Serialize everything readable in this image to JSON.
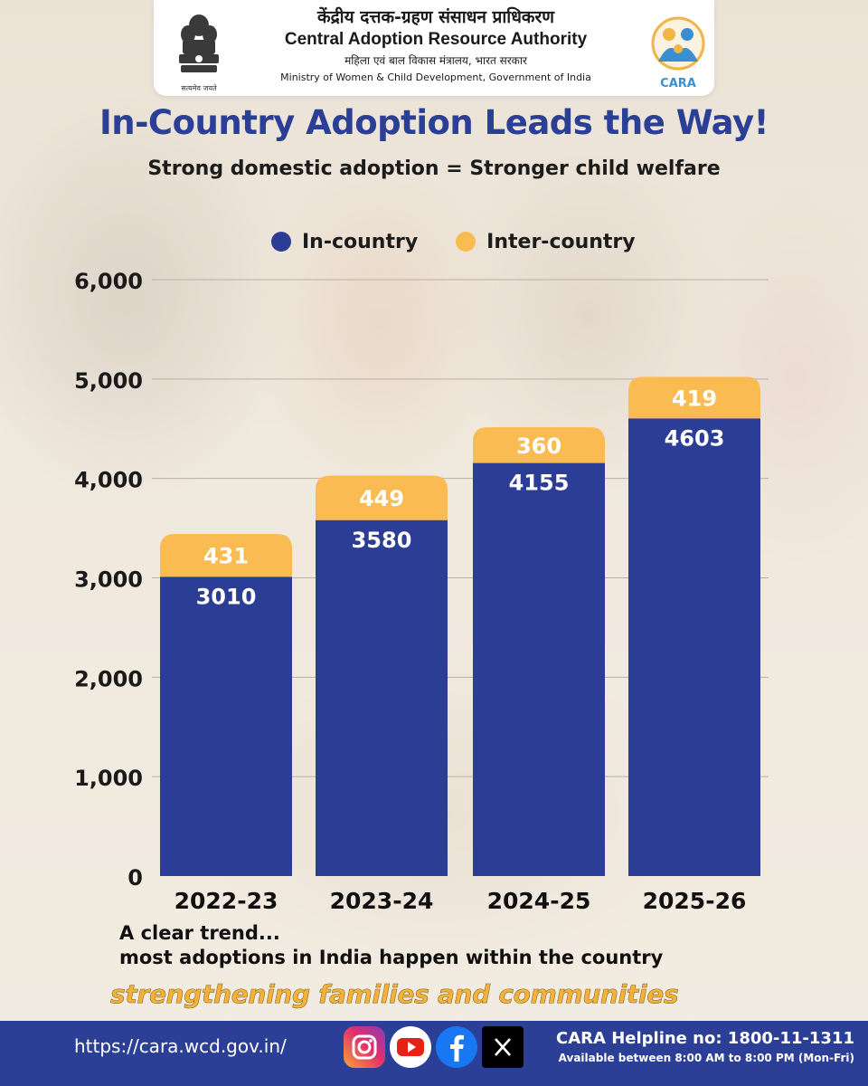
{
  "header": {
    "org_hindi": "केंद्रीय दत्तक-ग्रहण संसाधन प्राधिकरण",
    "org_english": "Central Adoption Resource Authority",
    "ministry_hindi": "महिला एवं बाल विकास मंत्रालय, भारत सरकार",
    "ministry_english": "Ministry of Women & Child Development, Government of India",
    "emblem_motto": "सत्यमेव जयते",
    "logo_text": "CARA",
    "emblem_icon": "national-emblem-icon",
    "logo_icon": "cara-family-logo-icon"
  },
  "title": "In-Country Adoption Leads the Way!",
  "subtitle": "Strong domestic adoption = Stronger child welfare",
  "colors": {
    "in_country": "#2c3d96",
    "inter_country": "#fbbb53",
    "title": "#2b3f96",
    "footer": "#2b3f96",
    "tagline": "#f4b23c"
  },
  "chart_data": {
    "type": "bar",
    "stacked": true,
    "categories": [
      "2022-23",
      "2023-24",
      "2024-25",
      "2025-26"
    ],
    "series": [
      {
        "name": "In-country",
        "values": [
          3010,
          3580,
          4155,
          4603
        ]
      },
      {
        "name": "Inter-country",
        "values": [
          431,
          449,
          360,
          419
        ]
      }
    ],
    "ylim": [
      0,
      6000
    ],
    "yticks": [
      "0",
      "1,000",
      "2,000",
      "3,000",
      "4,000",
      "5,000",
      "6,000"
    ],
    "ytick_values": [
      0,
      1000,
      2000,
      3000,
      4000,
      5000,
      6000
    ],
    "legend_position": "top-center",
    "grid": true
  },
  "trend_line1": "A clear trend...",
  "trend_line2": "most adoptions in India happen within the country",
  "tagline": "strengthening families and communities",
  "footer": {
    "url": "https://cara.wcd.gov.in/",
    "social": [
      "instagram-icon",
      "youtube-icon",
      "facebook-icon",
      "x-icon"
    ],
    "helpline": "CARA Helpline no: 1800-11-1311",
    "hours": "Available between 8:00 AM to 8:00 PM (Mon-Fri)"
  }
}
